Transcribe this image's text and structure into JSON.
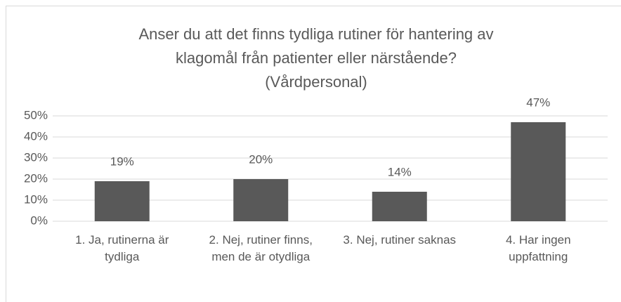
{
  "chart_data": {
    "type": "bar",
    "title": [
      "Anser du att det finns tydliga rutiner för hantering av",
      "klagomål från patienter eller närstående?",
      "(Vårdpersonal)"
    ],
    "categories": [
      "1. Ja, rutinerna är tydliga",
      "2. Nej, rutiner finns, men de är otydliga",
      "3. Nej, rutiner saknas",
      "4. Har ingen uppfattning"
    ],
    "values": [
      19,
      20,
      14,
      47
    ],
    "value_labels": [
      "19%",
      "20%",
      "14%",
      "47%"
    ],
    "color": "#595959",
    "ylim": [
      0,
      50
    ],
    "yticks": [
      {
        "value": 0,
        "label": "0%"
      },
      {
        "value": 10,
        "label": "10%"
      },
      {
        "value": 20,
        "label": "20%"
      },
      {
        "value": 30,
        "label": "30%"
      },
      {
        "value": 40,
        "label": "40%"
      },
      {
        "value": 50,
        "label": "50%"
      }
    ],
    "grid": true
  }
}
